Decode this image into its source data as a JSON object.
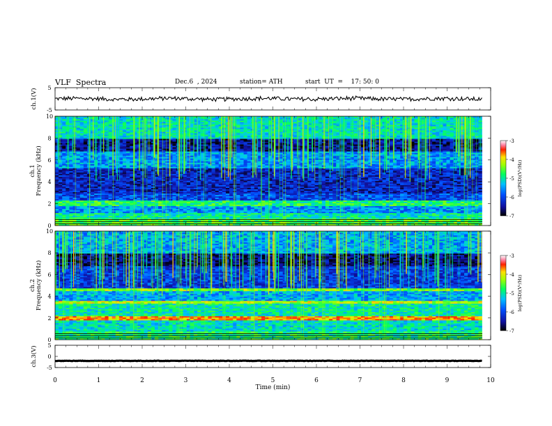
{
  "header": {
    "title": "VLF  Spectra",
    "date": "Dec.6  , 2024",
    "station": "station= ATH",
    "start_ut": "start  UT  =    17: 50: 0"
  },
  "chart_data": [
    {
      "type": "line",
      "name": "ch1-waveform",
      "ylabel": "ch.1(V)",
      "ylim": [
        -5,
        5
      ],
      "yticks": [
        "5",
        "-5"
      ],
      "xlim": [
        0,
        9.8
      ],
      "baseline": 0,
      "amplitude": 0.9
    },
    {
      "type": "heatmap",
      "name": "ch1-spectrogram",
      "ylabel": "ch.1\nFrequency  (kHz)",
      "ylim": [
        0,
        10
      ],
      "yticks": [
        "0",
        "2",
        "4",
        "6",
        "8",
        "10"
      ],
      "xlim": [
        0,
        9.8
      ],
      "colorbar": {
        "label": "log(PSD)(V²/Hz)",
        "range": [
          -7,
          -3
        ],
        "ticks": [
          "-3",
          "-4",
          "-5",
          "-6",
          "-7"
        ]
      },
      "bands": [
        {
          "f": [
            0,
            0.6
          ],
          "level": -4.8
        },
        {
          "f": [
            0.6,
            1.2
          ],
          "level": -5.2
        },
        {
          "f": [
            1.2,
            1.8
          ],
          "level": -5.7
        },
        {
          "f": [
            1.8,
            2.3
          ],
          "level": -5.0
        },
        {
          "f": [
            2.3,
            3.0
          ],
          "level": -6.1
        },
        {
          "f": [
            3.0,
            5.2
          ],
          "level": -6.4
        },
        {
          "f": [
            5.2,
            6.8
          ],
          "level": -5.7
        },
        {
          "f": [
            6.8,
            8.0
          ],
          "level": -6.6
        },
        {
          "f": [
            8.0,
            10.0
          ],
          "level": -5.3
        }
      ]
    },
    {
      "type": "heatmap",
      "name": "ch2-spectrogram",
      "ylabel": "ch.2\nFrequency  (kHz)",
      "ylim": [
        0,
        10
      ],
      "yticks": [
        "0",
        "2",
        "4",
        "6",
        "8",
        "10"
      ],
      "xlim": [
        0,
        9.8
      ],
      "colorbar": {
        "label": "log(PSD)(V²/Hz)",
        "range": [
          -7,
          -3
        ],
        "ticks": [
          "-3",
          "-4",
          "-5",
          "-6",
          "-7"
        ]
      },
      "bands": [
        {
          "f": [
            0,
            0.8
          ],
          "level": -5.0
        },
        {
          "f": [
            0.8,
            1.8
          ],
          "level": -5.3
        },
        {
          "f": [
            1.8,
            2.2
          ],
          "level": -3.9
        },
        {
          "f": [
            2.2,
            3.3
          ],
          "level": -5.2
        },
        {
          "f": [
            3.3,
            3.6
          ],
          "level": -4.4
        },
        {
          "f": [
            3.6,
            4.5
          ],
          "level": -5.6
        },
        {
          "f": [
            4.5,
            4.8
          ],
          "level": -4.6
        },
        {
          "f": [
            4.8,
            6.8
          ],
          "level": -6.2
        },
        {
          "f": [
            6.8,
            8.0
          ],
          "level": -6.7
        },
        {
          "f": [
            8.0,
            10.0
          ],
          "level": -5.6
        }
      ]
    },
    {
      "type": "line",
      "name": "ch3-waveform",
      "ylabel": "ch.3(V)",
      "ylim": [
        -5,
        5
      ],
      "yticks": [
        "5",
        "0",
        "-5"
      ],
      "xlim": [
        0,
        9.8
      ],
      "baseline": -2,
      "amplitude": 0.1
    }
  ],
  "xaxis": {
    "label": "Time  (min)",
    "range": [
      0,
      10
    ],
    "ticks": [
      "0",
      "1",
      "2",
      "3",
      "4",
      "5",
      "6",
      "7",
      "8",
      "9",
      "10"
    ]
  }
}
